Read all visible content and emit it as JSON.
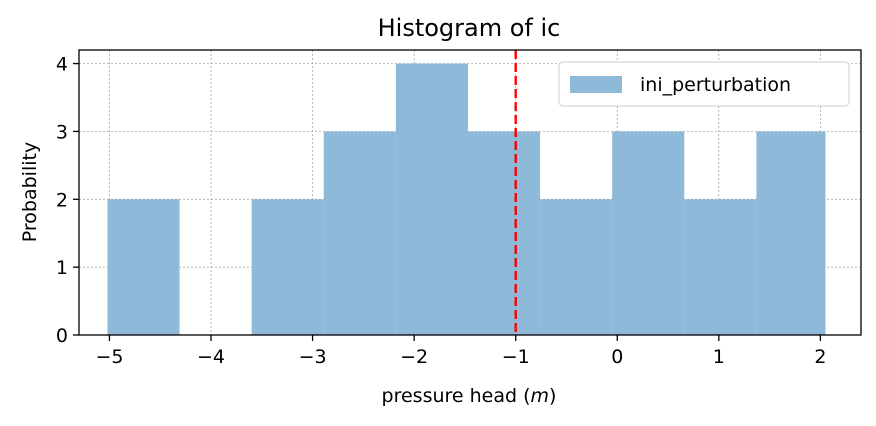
{
  "chart_data": {
    "type": "histogram",
    "title": "Histogram of ic",
    "xlabel": "pressure head (m)",
    "xlabel_prefix": "pressure head (",
    "xlabel_var": "m",
    "xlabel_suffix": ")",
    "ylabel": "Probability",
    "xlim": [
      -5.3,
      2.4
    ],
    "ylim": [
      0,
      4.2
    ],
    "xticks": [
      -5,
      -4,
      -3,
      -2,
      -1,
      0,
      1,
      2
    ],
    "xtick_labels": [
      "−5",
      "−4",
      "−3",
      "−2",
      "−1",
      "0",
      "1",
      "2"
    ],
    "yticks": [
      0,
      1,
      2,
      3,
      4
    ],
    "ytick_labels": [
      "0",
      "1",
      "2",
      "3",
      "4"
    ],
    "grid": true,
    "legend_position": "top-right",
    "series": [
      {
        "name": "ini_perturbation",
        "color": "#8fb9d8",
        "bins": [
          {
            "x0": -5.02,
            "x1": -4.31,
            "count": 2
          },
          {
            "x0": -4.31,
            "x1": -3.6,
            "count": 0
          },
          {
            "x0": -3.6,
            "x1": -2.89,
            "count": 2
          },
          {
            "x0": -2.89,
            "x1": -2.18,
            "count": 3
          },
          {
            "x0": -2.18,
            "x1": -1.47,
            "count": 4
          },
          {
            "x0": -1.47,
            "x1": -0.76,
            "count": 3
          },
          {
            "x0": -0.76,
            "x1": -0.05,
            "count": 2
          },
          {
            "x0": -0.05,
            "x1": 0.66,
            "count": 3
          },
          {
            "x0": 0.66,
            "x1": 1.37,
            "count": 2
          },
          {
            "x0": 1.37,
            "x1": 2.05,
            "count": 3
          }
        ]
      }
    ],
    "reference_line": {
      "x": -1,
      "color": "#ff0000",
      "style": "dashed"
    }
  }
}
